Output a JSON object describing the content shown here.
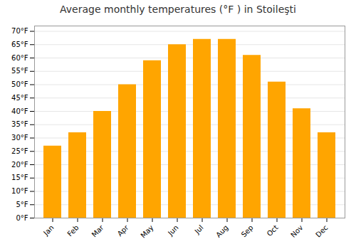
{
  "chart_data": {
    "type": "bar",
    "title": "Average monthly temperatures (°F ) in Stoileşti",
    "categories": [
      "Jan",
      "Feb",
      "Mar",
      "Apr",
      "May",
      "Jun",
      "Jul",
      "Aug",
      "Sep",
      "Oct",
      "Nov",
      "Dec"
    ],
    "values": [
      27,
      32,
      40,
      50,
      59,
      65,
      67,
      67,
      61,
      51,
      41,
      32
    ],
    "color": "#FFA500",
    "ylim": [
      0,
      72
    ],
    "yticks": [
      {
        "value": 0,
        "label": "0°F"
      },
      {
        "value": 5,
        "label": "5°F"
      },
      {
        "value": 10,
        "label": "10°F"
      },
      {
        "value": 15,
        "label": "15°F"
      },
      {
        "value": 20,
        "label": "20°F"
      },
      {
        "value": 25,
        "label": "25°F"
      },
      {
        "value": 30,
        "label": "30°F"
      },
      {
        "value": 35,
        "label": "35°F"
      },
      {
        "value": 40,
        "label": "40°F"
      },
      {
        "value": 45,
        "label": "45°F"
      },
      {
        "value": 50,
        "label": "50°F"
      },
      {
        "value": 55,
        "label": "55°F"
      },
      {
        "value": 60,
        "label": "60°F"
      },
      {
        "value": 65,
        "label": "65°F"
      },
      {
        "value": 70,
        "label": "70°F"
      }
    ],
    "grid": true
  }
}
